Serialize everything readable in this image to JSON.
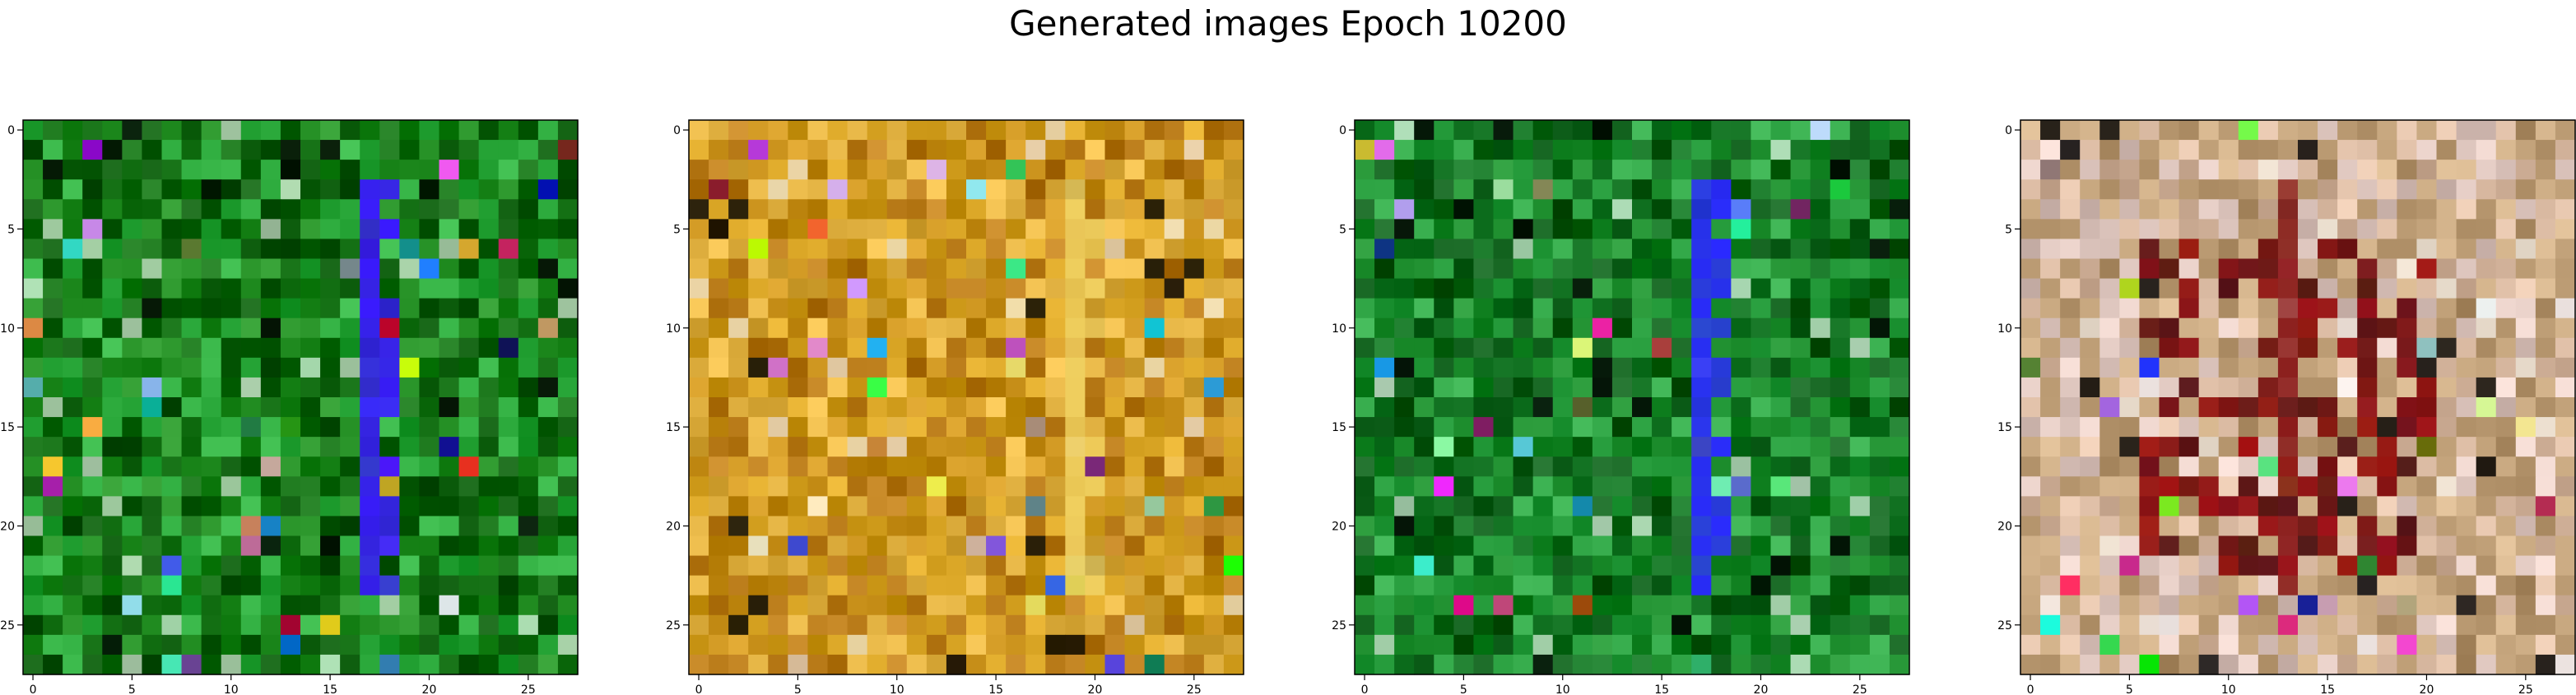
{
  "figure": {
    "title": "Generated images Epoch 10200"
  },
  "chart_data": [
    {
      "type": "heatmap",
      "grid_size": 28,
      "xlim": [
        -0.5,
        27.5
      ],
      "ylim": [
        27.5,
        -0.5
      ],
      "x_ticks": [
        0,
        5,
        10,
        15,
        20,
        25
      ],
      "y_ticks": [
        0,
        5,
        10,
        15,
        20,
        25
      ],
      "dominant_palette": "green",
      "feature": "vertical blue/purple stroke near column 17",
      "base_colors": [
        "#1f8a1f",
        "#0f6b0f",
        "#2aa83a",
        "#0a5a0a"
      ],
      "stroke_color": "#3a1aff"
    },
    {
      "type": "heatmap",
      "grid_size": 28,
      "xlim": [
        -0.5,
        27.5
      ],
      "ylim": [
        27.5,
        -0.5
      ],
      "x_ticks": [
        0,
        5,
        10,
        15,
        20,
        25
      ],
      "y_ticks": [
        0,
        5,
        10,
        15,
        20,
        25
      ],
      "dominant_palette": "amber",
      "feature": "vertical light stroke near column 19",
      "base_colors": [
        "#d4a020",
        "#c8901a",
        "#e0b040",
        "#b87a18"
      ],
      "stroke_color": "#f0d060"
    },
    {
      "type": "heatmap",
      "grid_size": 28,
      "xlim": [
        -0.5,
        27.5
      ],
      "ylim": [
        27.5,
        -0.5
      ],
      "x_ticks": [
        0,
        5,
        10,
        15,
        20,
        25
      ],
      "y_ticks": [
        0,
        5,
        10,
        15,
        20,
        25
      ],
      "dominant_palette": "green",
      "feature": "vertical blue stroke near column 17",
      "base_colors": [
        "#1a8a2a",
        "#0e6e1e",
        "#2aa040",
        "#0c5c18"
      ],
      "stroke_color": "#2a2aff"
    },
    {
      "type": "heatmap",
      "grid_size": 28,
      "xlim": [
        -0.5,
        27.5
      ],
      "ylim": [
        27.5,
        -0.5
      ],
      "x_ticks": [
        0,
        5,
        10,
        15,
        20,
        25
      ],
      "y_ticks": [
        0,
        5,
        10,
        15,
        20,
        25
      ],
      "dominant_palette": "pastel",
      "feature": "mottled pastel with dark red center",
      "base_colors": [
        "#d8b8a0",
        "#c8a880",
        "#e0c8c0",
        "#b89870"
      ],
      "stroke_color": "#8a1a1a"
    }
  ]
}
